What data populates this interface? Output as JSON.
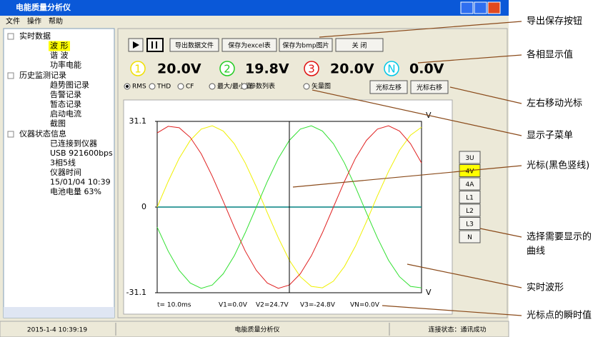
{
  "window": {
    "title": "电能质量分析仪",
    "menu": [
      "文件",
      "操作",
      "帮助"
    ]
  },
  "tree": [
    {
      "label": "实时数据",
      "children": [
        "波 形",
        "谐 波",
        "功率电能"
      ]
    },
    {
      "label": "历史监测记录",
      "children": [
        "趋势图记录",
        "告警记录",
        "暂态记录",
        "启动电流",
        "截图"
      ]
    },
    {
      "label": "仪器状态信息",
      "children": [
        "已连接到仪器",
        "USB 921600bps",
        "3相5线",
        "仪器时间",
        "15/01/04 10:39",
        "电池电量 63%"
      ]
    }
  ],
  "toolbar": [
    "导出数据文件",
    "保存为excel表",
    "保存为bmp图片",
    "关 闭"
  ],
  "readouts": [
    {
      "phase": "1",
      "value": "20.0V",
      "color": "#f0e000"
    },
    {
      "phase": "2",
      "value": "19.8V",
      "color": "#22cc22"
    },
    {
      "phase": "3",
      "value": "20.0V",
      "color": "#e01010"
    },
    {
      "phase": "N",
      "value": "0.0V",
      "color": "#00c8e8"
    }
  ],
  "view_options": [
    "RMS",
    "THD",
    "CF",
    "最大/最小值",
    "参数列表",
    "矢量图"
  ],
  "cursor_buttons": [
    "光标左移",
    "光标右移"
  ],
  "curve_buttons": [
    "3U",
    "4V",
    "4A",
    "L1",
    "L2",
    "L3",
    "N"
  ],
  "chart_data": {
    "type": "line",
    "ylim": [
      -31.1,
      31.1
    ],
    "yticks": [
      31.1,
      0,
      -31.1
    ],
    "y_unit": "V",
    "categories": [
      null,
      null,
      null,
      null,
      null,
      null,
      null,
      null,
      null,
      null,
      null,
      null,
      null,
      null,
      null,
      null,
      null,
      null,
      null,
      null,
      null,
      null,
      null,
      null,
      null
    ],
    "series": [
      {
        "color": "#f0f000",
        "values": [
          0,
          9.3,
          17.7,
          24.2,
          28.3,
          29.5,
          27.6,
          23.0,
          16.0,
          7.3,
          -2.1,
          -11.2,
          -19.3,
          -25.3,
          -28.8,
          -29.3,
          -26.9,
          -21.6,
          -14.2,
          -5.3,
          4.1,
          12.9,
          20.6,
          26.1,
          29.0
        ]
      },
      {
        "color": "#30e030",
        "values": [
          -7.3,
          -16.0,
          -23.0,
          -27.6,
          -29.5,
          -28.3,
          -24.2,
          -17.7,
          -9.3,
          0,
          9.3,
          17.7,
          24.2,
          28.3,
          29.5,
          27.6,
          23.0,
          16.0,
          7.3,
          -2.1,
          -11.2,
          -19.3,
          -25.3,
          -28.8,
          -29.3
        ]
      },
      {
        "color": "#e02020",
        "values": [
          26.9,
          29.3,
          28.8,
          25.3,
          19.3,
          11.2,
          2.1,
          -7.3,
          -16.0,
          -23.0,
          -27.6,
          -29.5,
          -28.3,
          -24.2,
          -17.7,
          -9.3,
          0,
          9.3,
          17.7,
          24.2,
          28.3,
          29.5,
          27.6,
          23.0,
          16.0
        ]
      }
    ],
    "readings": [
      "t= 10.0ms",
      "V1=0.0V",
      "V2=24.7V",
      "V3=-24.8V",
      "VN=0.0V"
    ]
  },
  "status_bar": [
    "2015-1-4 10:39:19",
    "电能质量分析仪",
    "连接状态：通讯成功"
  ],
  "annotations": [
    [
      "导出保存按钮"
    ],
    [
      "各相显示值"
    ],
    [
      "左右移动光标"
    ],
    [
      "显示子菜单"
    ],
    [
      "光标(黑色竖线)"
    ],
    [
      "选择需要显示的",
      "曲线"
    ],
    [
      "实时波形"
    ],
    [
      "光标点的瞬时值"
    ]
  ]
}
